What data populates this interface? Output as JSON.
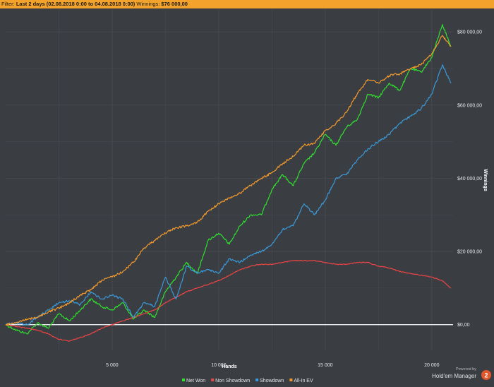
{
  "filter_bar": {
    "label": "Filter:",
    "range": "Last 2 days (02.08.2018 0:00 to 04.08.2018 0:00)",
    "winnings_label": "Winnings:",
    "winnings_value": "$76 000,00"
  },
  "branding": {
    "powered_by": "Powered by",
    "product": "Hold'em Manager",
    "badge": "2"
  },
  "colors": {
    "background": "#3a3d42",
    "grid": "#4a4d52",
    "zero_line": "#ffffff",
    "accent": "#f3a32c"
  },
  "chart_data": {
    "type": "line",
    "xlabel": "Hands",
    "ylabel": "Winnings",
    "xlim": [
      0,
      21000
    ],
    "ylim": [
      -7000,
      86000
    ],
    "x_ticks": [
      5000,
      10000,
      15000,
      20000
    ],
    "x_tick_labels": [
      "5 000",
      "10 000",
      "15 000",
      "20 000"
    ],
    "y_ticks": [
      0,
      20000,
      40000,
      60000,
      80000
    ],
    "y_tick_labels": [
      "$0,00",
      "$20 000,00",
      "$40 000,00",
      "$60 000,00",
      "$80 000,00"
    ],
    "grid": true,
    "legend_position": "bottom-center",
    "series": [
      {
        "name": "Net Won",
        "color": "#2fe02f",
        "x": [
          0,
          500,
          1000,
          1500,
          2000,
          2500,
          3000,
          3500,
          4000,
          4500,
          5000,
          5500,
          6000,
          6500,
          7000,
          7500,
          8000,
          8500,
          9000,
          9500,
          10000,
          10500,
          11000,
          11500,
          12000,
          12500,
          13000,
          13500,
          14000,
          14500,
          15000,
          15500,
          16000,
          16500,
          17000,
          17500,
          18000,
          18500,
          19000,
          19500,
          20000,
          20500,
          20900
        ],
        "values": [
          0,
          -1500,
          -2500,
          500,
          -1000,
          3000,
          1000,
          4000,
          7000,
          5000,
          4000,
          6000,
          1500,
          4000,
          2000,
          9000,
          13000,
          17000,
          14000,
          23000,
          25000,
          22000,
          27000,
          30000,
          30000,
          37000,
          41000,
          38000,
          44000,
          47000,
          52000,
          49000,
          54000,
          56000,
          63000,
          62000,
          66000,
          64000,
          70000,
          69000,
          73000,
          82000,
          76000
        ]
      },
      {
        "name": "Non Showdown",
        "color": "#ee4444",
        "x": [
          0,
          500,
          1000,
          1500,
          2000,
          2500,
          3000,
          3500,
          4000,
          4500,
          5000,
          5500,
          6000,
          6500,
          7000,
          7500,
          8000,
          8500,
          9000,
          9500,
          10000,
          10500,
          11000,
          11500,
          12000,
          12500,
          13000,
          13500,
          14000,
          14500,
          15000,
          15500,
          16000,
          16500,
          17000,
          17500,
          18000,
          18500,
          19000,
          19500,
          20000,
          20500,
          20900
        ],
        "values": [
          0,
          -500,
          -1000,
          -1500,
          -2500,
          -4000,
          -4500,
          -3500,
          -2500,
          -1000,
          0,
          1000,
          2000,
          3000,
          4000,
          6000,
          7500,
          9000,
          10000,
          11000,
          12000,
          13500,
          15000,
          16000,
          16500,
          16500,
          17000,
          17500,
          17500,
          17500,
          17000,
          16500,
          16500,
          17000,
          17000,
          16000,
          15500,
          14500,
          14000,
          13500,
          13000,
          12000,
          10000
        ]
      },
      {
        "name": "Showdown",
        "color": "#3a9ad9",
        "x": [
          0,
          500,
          1000,
          1500,
          2000,
          2500,
          3000,
          3500,
          4000,
          4500,
          5000,
          5500,
          6000,
          6500,
          7000,
          7500,
          8000,
          8500,
          9000,
          9500,
          10000,
          10500,
          11000,
          11500,
          12000,
          12500,
          13000,
          13500,
          14000,
          14500,
          15000,
          15500,
          16000,
          16500,
          17000,
          17500,
          18000,
          18500,
          19000,
          19500,
          20000,
          20500,
          20900
        ],
        "values": [
          0,
          500,
          0,
          2000,
          4000,
          6000,
          6500,
          5500,
          9000,
          7000,
          8000,
          7000,
          2000,
          6000,
          5000,
          13000,
          7000,
          16000,
          14000,
          15000,
          14000,
          18000,
          17000,
          19000,
          20000,
          22000,
          26000,
          27000,
          33000,
          30000,
          34000,
          40000,
          41000,
          45000,
          48000,
          50000,
          52000,
          55000,
          57000,
          59000,
          63000,
          71000,
          66000
        ]
      },
      {
        "name": "All-In EV",
        "color": "#f39a2c",
        "x": [
          0,
          500,
          1000,
          1500,
          2000,
          2500,
          3000,
          3500,
          4000,
          4500,
          5000,
          5500,
          6000,
          6500,
          7000,
          7500,
          8000,
          8500,
          9000,
          9500,
          10000,
          10500,
          11000,
          11500,
          12000,
          12500,
          13000,
          13500,
          14000,
          14500,
          15000,
          15500,
          16000,
          16500,
          17000,
          17500,
          18000,
          18500,
          19000,
          19500,
          20000,
          20500,
          20900
        ],
        "values": [
          0,
          500,
          1500,
          2000,
          3500,
          4500,
          6000,
          8000,
          9500,
          12000,
          13000,
          14500,
          17000,
          21000,
          23000,
          25000,
          26500,
          27000,
          28000,
          31000,
          33000,
          34500,
          36000,
          38000,
          40000,
          41500,
          44000,
          46000,
          49000,
          49500,
          53000,
          55000,
          58000,
          63000,
          67000,
          66000,
          68000,
          68500,
          70000,
          71000,
          74000,
          79000,
          76000
        ]
      }
    ]
  }
}
